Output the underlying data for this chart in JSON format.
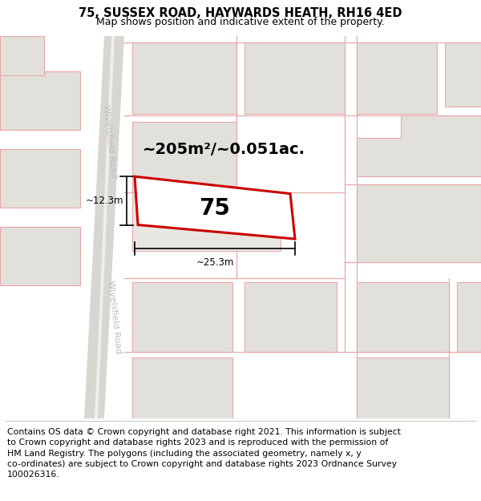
{
  "title": "75, SUSSEX ROAD, HAYWARDS HEATH, RH16 4ED",
  "subtitle": "Map shows position and indicative extent of the property.",
  "title_fontsize": 10.5,
  "subtitle_fontsize": 9,
  "footer_text": "Contains OS data © Crown copyright and database right 2021. This information is subject\nto Crown copyright and database rights 2023 and is reproduced with the permission of\nHM Land Registry. The polygons (including the associated geometry, namely x, y\nco-ordinates) are subject to Crown copyright and database rights 2023 Ordnance Survey\n100026316.",
  "footer_fontsize": 7.8,
  "bg_color": "#f0efeb",
  "building_fill": "#e2e0db",
  "building_outline": "#e8a8a8",
  "highlight_color": "#cc0000",
  "highlight_fill": "#ffffff",
  "road_fill": "#d8d6d0",
  "road_label_color": "#c0bcb8",
  "area_text": "~205m²/~0.051ac.",
  "number_text": "75",
  "dim_width": "~25.3m",
  "dim_height": "~12.3m"
}
